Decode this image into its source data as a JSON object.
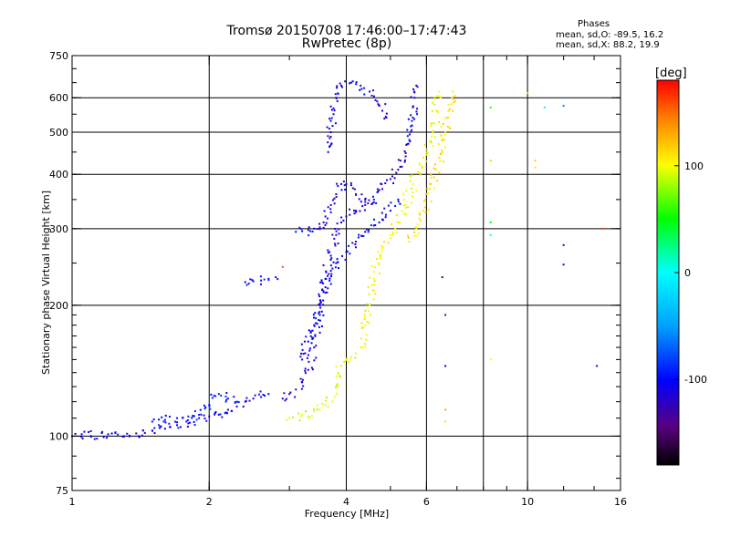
{
  "header": {
    "line1": "Tromsø 20150708 17:46:00–17:47:43",
    "line2": "RwPretec (8p)"
  },
  "phases": {
    "heading": "Phases",
    "o_line": "mean, sd,O: -89.5, 16.2",
    "x_line": "mean, sd,X:  88.2, 19.9"
  },
  "chart_data": {
    "type": "scatter",
    "title": "Tromsø 20150708 17:46:00–17:47:43",
    "subtitle": "RwPretec (8p)",
    "xlabel": "Frequency [MHz]",
    "ylabel": "Stationary phase Virtual Height [km]",
    "xscale": "log",
    "yscale": "log",
    "xlim": [
      1,
      16
    ],
    "ylim": [
      75,
      750
    ],
    "x_ticks": [
      1,
      2,
      4,
      6,
      10,
      16
    ],
    "x_tick_labels": [
      "1",
      "2",
      "4",
      "6",
      "10",
      "16"
    ],
    "y_ticks": [
      75,
      100,
      200,
      300,
      400,
      500,
      600,
      750
    ],
    "y_tick_labels": [
      "75",
      "100",
      "200",
      "300",
      "400",
      "500",
      "600",
      "750"
    ],
    "x_gridlines": [
      2,
      4,
      6,
      8,
      10
    ],
    "y_gridlines": [
      100,
      200,
      300,
      400,
      500,
      600
    ],
    "grid": true,
    "colorbar": {
      "label": "[deg]",
      "ticks": [
        100,
        0,
        -100
      ],
      "tick_labels": [
        "100",
        "0",
        "-100"
      ],
      "range": [
        -180,
        180
      ],
      "position": "right"
    },
    "traces": [
      {
        "name": "",
        "phase": -105,
        "points": [
          [
            1.0,
            100
          ],
          [
            1.05,
            101
          ],
          [
            1.1,
            100
          ],
          [
            1.2,
            101
          ],
          [
            1.3,
            100
          ],
          [
            1.4,
            100
          ],
          [
            1.5,
            103
          ],
          [
            1.6,
            104
          ],
          [
            1.7,
            106
          ],
          [
            1.8,
            107
          ],
          [
            1.9,
            110
          ],
          [
            2.0,
            111
          ],
          [
            2.1,
            112
          ],
          [
            2.2,
            115
          ],
          [
            2.3,
            117
          ],
          [
            2.4,
            120
          ],
          [
            2.5,
            122
          ],
          [
            2.6,
            123
          ],
          [
            2.7,
            125
          ]
        ]
      },
      {
        "name": "",
        "phase": -95,
        "points": [
          [
            1.5,
            108
          ],
          [
            1.6,
            109
          ],
          [
            1.7,
            110
          ],
          [
            1.8,
            111
          ],
          [
            1.9,
            112
          ],
          [
            2.0,
            118
          ],
          [
            2.1,
            125
          ],
          [
            2.2,
            122
          ],
          [
            2.3,
            120
          ]
        ]
      },
      {
        "name": "",
        "phase": -100,
        "points": [
          [
            2.4,
            226
          ],
          [
            2.5,
            227
          ],
          [
            2.6,
            228
          ],
          [
            2.7,
            230
          ],
          [
            2.8,
            232
          ]
        ]
      },
      {
        "name": "",
        "phase": -110,
        "points": [
          [
            2.9,
            122
          ],
          [
            3.0,
            125
          ],
          [
            3.1,
            128
          ],
          [
            3.2,
            133
          ],
          [
            3.3,
            142
          ],
          [
            3.4,
            160
          ],
          [
            3.5,
            190
          ],
          [
            3.6,
            230
          ],
          [
            3.7,
            260
          ],
          [
            3.8,
            290
          ],
          [
            3.9,
            310
          ],
          [
            4.0,
            320
          ],
          [
            4.2,
            330
          ],
          [
            4.4,
            340
          ],
          [
            4.6,
            350
          ],
          [
            4.8,
            370
          ],
          [
            5.0,
            390
          ],
          [
            5.2,
            410
          ],
          [
            5.4,
            440
          ],
          [
            5.5,
            480
          ],
          [
            5.6,
            540
          ],
          [
            5.65,
            600
          ],
          [
            5.7,
            640
          ]
        ]
      },
      {
        "name": "",
        "phase": -105,
        "points": [
          [
            3.2,
            150
          ],
          [
            3.3,
            165
          ],
          [
            3.4,
            180
          ],
          [
            3.5,
            200
          ],
          [
            3.6,
            220
          ],
          [
            3.7,
            240
          ],
          [
            3.8,
            250
          ],
          [
            4.0,
            265
          ],
          [
            4.2,
            280
          ],
          [
            4.4,
            295
          ],
          [
            4.6,
            305
          ],
          [
            4.8,
            315
          ],
          [
            5.0,
            330
          ],
          [
            5.2,
            350
          ]
        ]
      },
      {
        "name": "",
        "phase": -115,
        "points": [
          [
            3.5,
            300
          ],
          [
            3.6,
            320
          ],
          [
            3.7,
            340
          ],
          [
            3.8,
            360
          ],
          [
            3.9,
            380
          ],
          [
            4.0,
            380
          ],
          [
            4.2,
            360
          ],
          [
            4.4,
            350
          ],
          [
            4.6,
            345
          ]
        ]
      },
      {
        "name": "",
        "phase": -108,
        "points": [
          [
            3.65,
            450
          ],
          [
            3.7,
            500
          ],
          [
            3.75,
            550
          ],
          [
            3.8,
            600
          ],
          [
            3.9,
            640
          ],
          [
            4.1,
            650
          ],
          [
            4.3,
            640
          ],
          [
            4.5,
            620
          ],
          [
            4.7,
            580
          ],
          [
            4.8,
            560
          ],
          [
            4.9,
            540
          ]
        ]
      },
      {
        "name": "",
        "phase": -100,
        "points": [
          [
            3.1,
            295
          ],
          [
            3.2,
            296
          ],
          [
            3.3,
            298
          ],
          [
            3.4,
            300
          ],
          [
            3.5,
            302
          ]
        ]
      },
      {
        "name": "",
        "phase": 95,
        "points": [
          [
            3.0,
            110
          ],
          [
            3.2,
            112
          ],
          [
            3.4,
            114
          ],
          [
            3.6,
            118
          ],
          [
            3.8,
            130
          ],
          [
            3.9,
            145
          ],
          [
            4.0,
            150
          ],
          [
            4.1,
            152
          ],
          [
            4.2,
            155
          ]
        ]
      },
      {
        "name": "",
        "phase": 100,
        "points": [
          [
            4.3,
            160
          ],
          [
            4.4,
            180
          ],
          [
            4.5,
            200
          ],
          [
            4.6,
            230
          ],
          [
            4.7,
            250
          ],
          [
            4.8,
            270
          ],
          [
            5.0,
            290
          ],
          [
            5.2,
            310
          ],
          [
            5.4,
            340
          ],
          [
            5.6,
            380
          ],
          [
            5.8,
            420
          ],
          [
            6.0,
            450
          ],
          [
            6.2,
            500
          ],
          [
            6.3,
            560
          ],
          [
            6.4,
            620
          ]
        ]
      },
      {
        "name": "",
        "phase": 110,
        "points": [
          [
            5.5,
            280
          ],
          [
            5.7,
            300
          ],
          [
            5.9,
            330
          ],
          [
            6.1,
            370
          ],
          [
            6.3,
            410
          ],
          [
            6.5,
            450
          ],
          [
            6.6,
            500
          ],
          [
            6.7,
            540
          ],
          [
            6.8,
            580
          ],
          [
            6.85,
            620
          ]
        ]
      }
    ],
    "scattered_points": [
      {
        "x": 8.3,
        "y": 570,
        "phase": 60
      },
      {
        "x": 8.3,
        "y": 430,
        "phase": 80
      },
      {
        "x": 8.3,
        "y": 310,
        "phase": 50
      },
      {
        "x": 8.3,
        "y": 290,
        "phase": 10
      },
      {
        "x": 8.3,
        "y": 150,
        "phase": 100
      },
      {
        "x": 10.4,
        "y": 430,
        "phase": 120
      },
      {
        "x": 10.4,
        "y": 415,
        "phase": 110
      },
      {
        "x": 10.9,
        "y": 570,
        "phase": -5
      },
      {
        "x": 12.0,
        "y": 575,
        "phase": -60
      },
      {
        "x": 12.0,
        "y": 275,
        "phase": -120
      },
      {
        "x": 12.0,
        "y": 248,
        "phase": -110
      },
      {
        "x": 14.2,
        "y": 145,
        "phase": -115
      },
      {
        "x": 14.6,
        "y": 300,
        "phase": 160
      },
      {
        "x": 6.6,
        "y": 108,
        "phase": 110
      },
      {
        "x": 6.6,
        "y": 115,
        "phase": 130
      },
      {
        "x": 6.6,
        "y": 145,
        "phase": -110
      },
      {
        "x": 6.6,
        "y": 190,
        "phase": -140
      },
      {
        "x": 6.5,
        "y": 232,
        "phase": -150
      },
      {
        "x": 10.0,
        "y": 615,
        "phase": 80
      },
      {
        "x": 2.9,
        "y": 245,
        "phase": 160
      }
    ]
  }
}
